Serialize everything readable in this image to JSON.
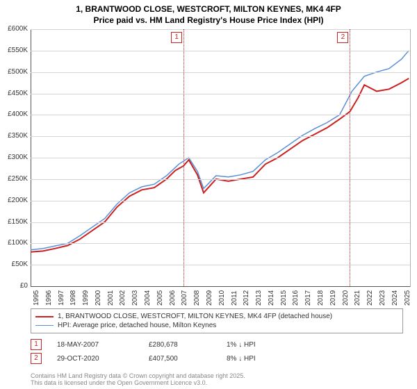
{
  "title_line1": "1, BRANTWOOD CLOSE, WESTCROFT, MILTON KEYNES, MK4 4FP",
  "title_line2": "Price paid vs. HM Land Registry's House Price Index (HPI)",
  "chart": {
    "type": "line",
    "xlim": [
      1995,
      2025.7
    ],
    "ylim": [
      0,
      600
    ],
    "ytick_step": 50,
    "ytick_labels": [
      "£0",
      "£50K",
      "£100K",
      "£150K",
      "£200K",
      "£250K",
      "£300K",
      "£350K",
      "£400K",
      "£450K",
      "£500K",
      "£550K",
      "£600K"
    ],
    "xtick_step": 1,
    "xtick_labels": [
      "1995",
      "1996",
      "1997",
      "1998",
      "1999",
      "2000",
      "2001",
      "2002",
      "2003",
      "2004",
      "2005",
      "2006",
      "2007",
      "2008",
      "2009",
      "2010",
      "2011",
      "2012",
      "2013",
      "2014",
      "2015",
      "2016",
      "2017",
      "2018",
      "2019",
      "2020",
      "2021",
      "2022",
      "2023",
      "2024",
      "2025"
    ],
    "grid_color": "#d5d5d5",
    "axis_color": "#555555",
    "background_color": "#ffffff",
    "series": [
      {
        "name": "1, BRANTWOOD CLOSE, WESTCROFT, MILTON KEYNES, MK4 4FP (detached house)",
        "color": "#cc1f1f",
        "width": 2,
        "x": [
          1995,
          1996,
          1997,
          1998,
          1999,
          2000,
          2001,
          2002,
          2003,
          2004,
          2005,
          2006,
          2006.7,
          2007.38,
          2007.8,
          2008.5,
          2009,
          2010,
          2011,
          2012,
          2013,
          2014,
          2015,
          2016,
          2017,
          2018,
          2019,
          2020,
          2020.83,
          2021.5,
          2022,
          2023,
          2024,
          2025,
          2025.6
        ],
        "y": [
          80,
          82,
          88,
          95,
          110,
          130,
          150,
          185,
          210,
          225,
          230,
          250,
          270,
          281,
          295,
          260,
          218,
          250,
          245,
          250,
          255,
          285,
          300,
          320,
          340,
          355,
          370,
          390,
          407.5,
          440,
          470,
          455,
          460,
          475,
          485
        ]
      },
      {
        "name": "HPI: Average price, detached house, Milton Keynes",
        "color": "#5a8fd6",
        "width": 1.5,
        "x": [
          1995,
          1996,
          1997,
          1998,
          1999,
          2000,
          2001,
          2002,
          2003,
          2004,
          2005,
          2006,
          2007,
          2007.8,
          2008.5,
          2009,
          2010,
          2011,
          2012,
          2013,
          2014,
          2015,
          2016,
          2017,
          2018,
          2019,
          2020,
          2021,
          2022,
          2023,
          2024,
          2025,
          2025.6
        ],
        "y": [
          85,
          88,
          94,
          100,
          118,
          138,
          158,
          192,
          218,
          232,
          238,
          258,
          285,
          300,
          268,
          228,
          258,
          255,
          260,
          268,
          295,
          312,
          332,
          352,
          368,
          382,
          400,
          455,
          490,
          500,
          508,
          530,
          550
        ]
      }
    ],
    "markers": [
      {
        "n": "1",
        "x": 2007.38,
        "label_x_offset": -18,
        "label_y": 46
      },
      {
        "n": "2",
        "x": 2020.83,
        "label_x_offset": -18,
        "label_y": 46
      }
    ]
  },
  "legend": {
    "items": [
      {
        "color": "#cc1f1f",
        "width": 2,
        "label": "1, BRANTWOOD CLOSE, WESTCROFT, MILTON KEYNES, MK4 4FP (detached house)"
      },
      {
        "color": "#5a8fd6",
        "width": 1.5,
        "label": "HPI: Average price, detached house, Milton Keynes"
      }
    ]
  },
  "transactions": [
    {
      "n": "1",
      "date": "18-MAY-2007",
      "price": "£280,678",
      "delta": "1% ↓ HPI"
    },
    {
      "n": "2",
      "date": "29-OCT-2020",
      "price": "£407,500",
      "delta": "8% ↓ HPI"
    }
  ],
  "footer": "Contains HM Land Registry data © Crown copyright and database right 2025.",
  "footer2": "This data is licensed under the Open Government Licence v3.0."
}
